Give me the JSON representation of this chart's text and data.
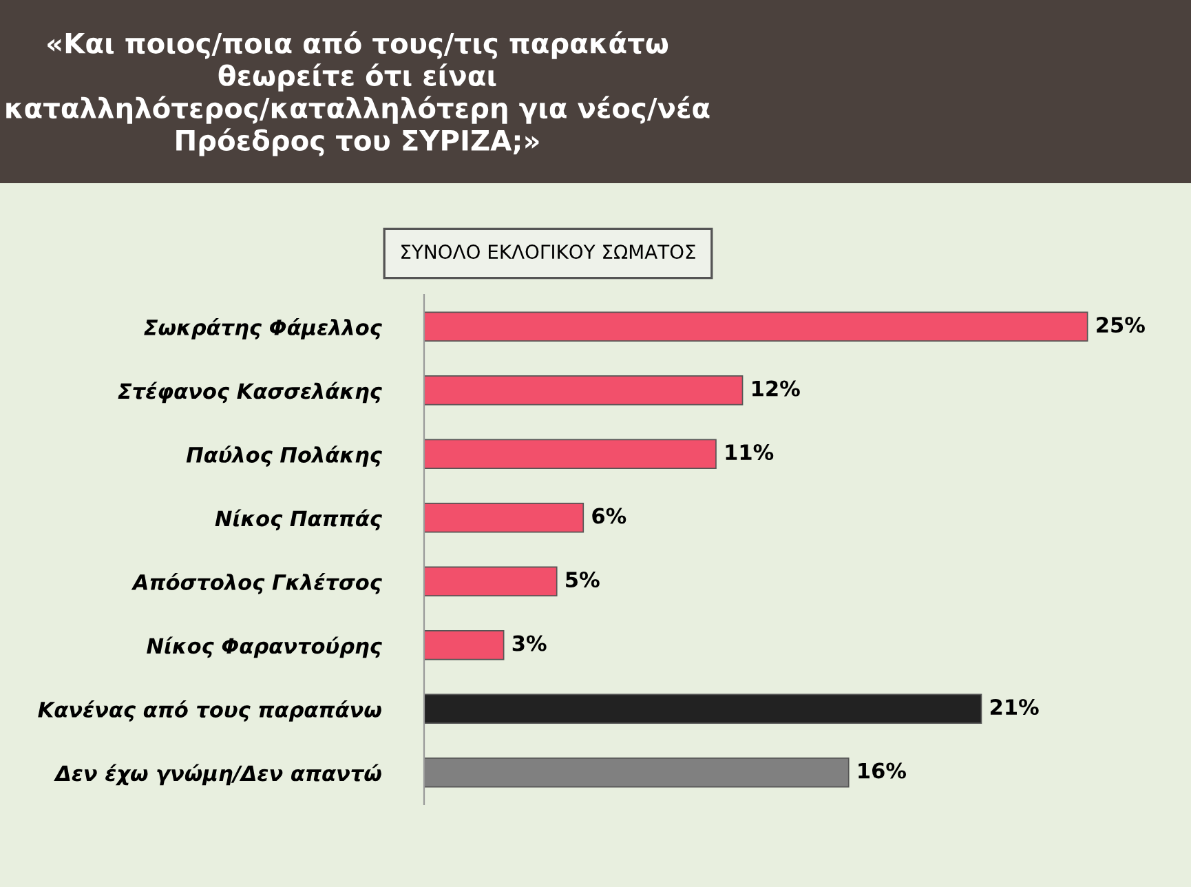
{
  "chart_data": {
    "type": "bar",
    "orientation": "horizontal",
    "title": "«Και ποιος/ποια από τους/τις παρακάτω θεωρείτε ότι είναι καταλληλότερος/καταλληλότερη για νέος/νέα Πρόεδρος του ΣΥΡΙΖΑ;»",
    "subtitle": "ΣΥΝΟΛΟ ΕΚΛΟΓΙΚΟΥ ΣΩΜΑΤΟΣ",
    "categories": [
      "Σωκράτης Φάμελλος",
      "Στέφανος Κασσελάκης",
      "Παύλος Πολάκης",
      "Νίκος Παππάς",
      "Απόστολος Γκλέτσος",
      "Νίκος Φαραντούρης",
      "Κανένας από τους παραπάνω",
      "Δεν έχω γνώμη/Δεν απαντώ"
    ],
    "values": [
      25,
      12,
      11,
      6,
      5,
      3,
      21,
      16
    ],
    "colors": [
      "#f2506b",
      "#f2506b",
      "#f2506b",
      "#f2506b",
      "#f2506b",
      "#f2506b",
      "#222222",
      "#808080"
    ],
    "value_labels": [
      "25%",
      "12%",
      "11%",
      "6%",
      "5%",
      "3%",
      "21%",
      "16%"
    ],
    "grid": false,
    "legend": false
  }
}
